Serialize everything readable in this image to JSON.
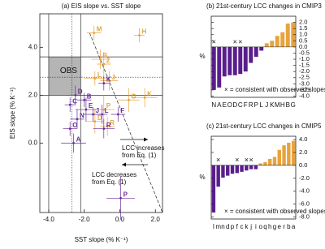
{
  "chart_data": [
    {
      "type": "scatter",
      "title": "(a) EIS slope vs. SST slope",
      "xlabel": "SST slope (% K⁻¹)",
      "ylabel": "EIS slope (% K⁻¹)",
      "xlim": [
        -4.5,
        2.4
      ],
      "ylim": [
        -2.9,
        5.4
      ],
      "xticks": [
        {
          "value": -4,
          "label": "-4.0"
        },
        {
          "value": -2,
          "label": "-2.0"
        },
        {
          "value": 0,
          "label": "0.0"
        },
        {
          "value": 2,
          "label": "2.0"
        }
      ],
      "yticks": [
        {
          "value": 0,
          "label": "0.0"
        },
        {
          "value": 2,
          "label": "2.0"
        },
        {
          "value": 4,
          "label": "4.0"
        }
      ],
      "obs_box": {
        "label": "OBS",
        "xlim": [
          -4.0,
          -2.2
        ],
        "ylim": [
          2.0,
          3.6
        ],
        "x": -2.7,
        "y": 2.75
      },
      "reference_line": {
        "x": [
          -1.7,
          2.4
        ],
        "y": [
          4.6,
          -2.9
        ]
      },
      "annotations": [
        [
          "LCC increases",
          "from Eq. (1)"
        ],
        [
          "LCC decreases",
          "from Eq. (1)"
        ]
      ],
      "series": [
        {
          "color": "#e8a33d",
          "x": [
            -1.45,
            1.1,
            -1.1,
            -0.9,
            -1.4,
            -0.6,
            0.5,
            1.4,
            -1.4,
            -0.7,
            -0.9
          ],
          "y": [
            4.6,
            4.5,
            3.5,
            3.3,
            2.7,
            2.6,
            1.8,
            1.9,
            0.9,
            0.7,
            1.4
          ],
          "xerr": [
            0.4,
            0.3,
            0.5,
            0.4,
            0.6,
            0.5,
            0.6,
            0.7,
            0.5,
            0.4,
            0.6
          ],
          "yerr": [
            0.3,
            0.3,
            0.4,
            0.5,
            0.3,
            0.4,
            0.5,
            0.4,
            0.5,
            0.4,
            0.6
          ],
          "labels": [
            "M",
            "H",
            "B",
            "2",
            "L",
            "J",
            "G",
            "K",
            "D",
            "R",
            "P"
          ]
        },
        {
          "color": "#6a2c9a",
          "x": [
            -0.9,
            -2.5,
            -2.0,
            -2.8,
            -1.9,
            -2.4,
            -2.8,
            -1.5,
            -1.0,
            -0.1,
            -0.9,
            -2.6,
            0.05
          ],
          "y": [
            2.5,
            2.0,
            1.8,
            1.6,
            1.4,
            1.0,
            0.6,
            1.2,
            1.2,
            1.2,
            0.6,
            0.0,
            -2.3
          ],
          "xerr": [
            0.3,
            0.5,
            0.4,
            0.3,
            0.6,
            0.4,
            0.4,
            0.5,
            0.3,
            0.4,
            0.6,
            0.7,
            0.8
          ],
          "yerr": [
            0.3,
            0.4,
            0.3,
            0.3,
            0.5,
            0.4,
            0.3,
            0.3,
            0.4,
            0.3,
            0.4,
            0.4,
            0.9
          ],
          "labels": [
            "K",
            "D",
            "B",
            "C",
            "E",
            "N",
            "O",
            "J",
            "L",
            "F",
            "R",
            "A",
            "P"
          ]
        }
      ]
    },
    {
      "type": "bar",
      "title": "(b) 21st-century LCC changes in CMIP3",
      "ylabel": "%",
      "categories": [
        "N",
        "A",
        "E",
        "O",
        "D",
        "C",
        "F",
        "R",
        "P",
        "L",
        "J",
        "K",
        "M",
        "H",
        "B",
        "G"
      ],
      "values": [
        -3.5,
        -3.3,
        -2.4,
        -2.3,
        -2.3,
        -2.2,
        -2.0,
        -1.3,
        -0.8,
        -0.3,
        0.3,
        0.5,
        0.9,
        1.2,
        1.9,
        2.0
      ],
      "consistent": [
        true,
        false,
        false,
        false,
        true,
        true,
        false,
        false,
        false,
        false,
        false,
        false,
        false,
        false,
        false,
        false
      ],
      "marker_symbol": "×",
      "legend_text": "× = consistent with observed slopes",
      "colors": {
        "negative": "#5a1e8c",
        "positive": "#e8a33d"
      },
      "ylim": [
        -4.1,
        2.5
      ],
      "yticks": [
        {
          "value": 2,
          "label": "2.0"
        },
        1.5,
        {
          "value": 1,
          "label": "1.0"
        },
        0.5,
        {
          "value": 0,
          "label": "0.0"
        },
        -0.5,
        {
          "value": -1,
          "label": "-1.0"
        },
        -1.5,
        {
          "value": -2,
          "label": "-2.0"
        },
        -2.5,
        {
          "value": -3,
          "label": "-3.0"
        },
        -3.5,
        {
          "value": -4,
          "label": "-4.0"
        }
      ]
    },
    {
      "type": "bar",
      "title": "(c) 21st-century LCC changes in CMIP5",
      "ylabel": "%",
      "categories": [
        "l",
        "m",
        "n",
        "d",
        "p",
        "f",
        "c",
        "k",
        "j",
        "i",
        "o",
        "q",
        "h",
        "g",
        "e",
        "r",
        "b",
        "a"
      ],
      "values": [
        -7.3,
        -3.3,
        -1.9,
        -1.6,
        -1.3,
        -1.2,
        -1.0,
        -0.8,
        -0.6,
        -0.6,
        0.3,
        0.5,
        1.0,
        1.3,
        2.4,
        3.1,
        3.5,
        3.8
      ],
      "consistent": [
        false,
        true,
        false,
        false,
        false,
        true,
        false,
        true,
        true,
        false,
        false,
        false,
        false,
        false,
        false,
        false,
        false,
        false
      ],
      "marker_symbol": "×",
      "legend_text": "× = consistent with observed slopes",
      "colors": {
        "negative": "#5a1e8c",
        "positive": "#e8a33d"
      },
      "ylim": [
        -8.3,
        4.5
      ],
      "yticks": [
        {
          "value": 4,
          "label": "4.0"
        },
        {
          "value": 2,
          "label": "2.0"
        },
        {
          "value": 0,
          "label": "0.0"
        },
        {
          "value": -2,
          "label": "-2.0"
        },
        {
          "value": -4,
          "label": "-4.0"
        },
        {
          "value": -6,
          "label": "-6.0"
        },
        {
          "value": -8,
          "label": "-8.0"
        }
      ]
    }
  ]
}
